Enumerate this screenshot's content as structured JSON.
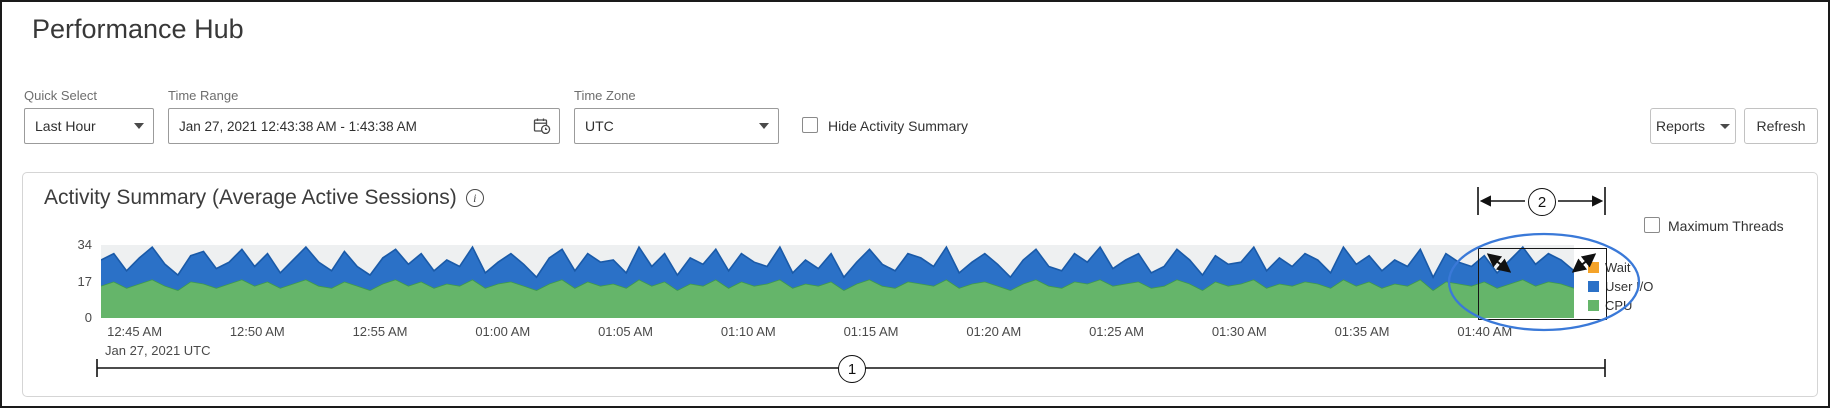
{
  "header": {
    "title": "Performance Hub"
  },
  "toolbar": {
    "quick_select": {
      "label": "Quick Select",
      "value": "Last Hour"
    },
    "time_range": {
      "label": "Time Range",
      "value": "Jan 27, 2021 12:43:38 AM - 1:43:38 AM"
    },
    "time_zone": {
      "label": "Time Zone",
      "value": "UTC"
    },
    "hide_activity_summary_label": "Hide Activity Summary",
    "hide_activity_summary_checked": false,
    "reports_label": "Reports",
    "refresh_label": "Refresh"
  },
  "panel": {
    "title": "Activity Summary (Average Active Sessions)",
    "maximum_threads_label": "Maximum Threads",
    "maximum_threads_checked": false
  },
  "annotations": {
    "step1": "1",
    "step2": "2",
    "highlight_color": "#3a79d8"
  },
  "chart_data": {
    "type": "area",
    "stacked": true,
    "title": "Activity Summary (Average Active Sessions)",
    "ylim": [
      0,
      34
    ],
    "y_ticks": [
      0,
      17,
      34
    ],
    "x_tick_labels": [
      "12:45 AM",
      "12:50 AM",
      "12:55 AM",
      "01:00 AM",
      "01:05 AM",
      "01:10 AM",
      "01:15 AM",
      "01:20 AM",
      "01:25 AM",
      "01:30 AM",
      "01:35 AM",
      "01:40 AM"
    ],
    "x_axis_note": "Jan 27, 2021 UTC",
    "legend_position": "right",
    "legend": [
      "Wait",
      "User I/O",
      "CPU"
    ],
    "series": [
      {
        "name": "CPU",
        "color": "#65b56a",
        "edge": "#3f9b4b",
        "values": [
          15,
          17,
          14,
          16,
          18,
          15,
          13,
          17,
          16,
          14,
          16,
          18,
          15,
          17,
          14,
          16,
          18,
          15,
          14,
          17,
          15,
          13,
          16,
          18,
          15,
          17,
          14,
          16,
          15,
          18,
          14,
          16,
          17,
          15,
          13,
          16,
          18,
          14,
          17,
          15,
          16,
          14,
          18,
          15,
          17,
          13,
          16,
          15,
          18,
          14,
          17,
          15,
          16,
          18,
          14,
          16,
          15,
          17,
          13,
          16,
          18,
          15,
          14,
          17,
          16,
          15,
          18,
          14,
          16,
          17,
          15,
          13,
          16,
          18,
          15,
          14,
          17,
          16,
          18,
          15,
          16,
          17,
          14,
          15,
          18,
          16,
          13,
          17,
          15,
          16,
          18,
          14,
          16,
          15,
          17,
          16,
          14,
          18,
          15,
          17,
          14,
          16,
          15,
          18,
          13,
          17,
          16,
          15,
          17,
          14,
          16,
          18,
          15,
          17,
          16,
          14
        ]
      },
      {
        "name": "User I/O",
        "color": "#2b71c7",
        "edge": "#1a5aa8",
        "values": [
          12,
          13,
          8,
          12,
          15,
          10,
          7,
          12,
          15,
          9,
          10,
          14,
          9,
          13,
          7,
          11,
          15,
          11,
          8,
          14,
          9,
          7,
          12,
          14,
          10,
          13,
          8,
          11,
          9,
          15,
          7,
          10,
          13,
          10,
          6,
          12,
          14,
          8,
          13,
          11,
          11,
          7,
          15,
          9,
          13,
          7,
          12,
          10,
          14,
          8,
          13,
          11,
          8,
          15,
          7,
          11,
          8,
          13,
          6,
          10,
          14,
          10,
          8,
          13,
          12,
          9,
          15,
          7,
          10,
          13,
          10,
          6,
          11,
          14,
          9,
          8,
          13,
          10,
          15,
          8,
          11,
          13,
          7,
          9,
          14,
          11,
          7,
          12,
          10,
          10,
          15,
          8,
          12,
          9,
          13,
          11,
          7,
          15,
          10,
          12,
          8,
          11,
          9,
          14,
          6,
          13,
          10,
          9,
          12,
          7,
          11,
          15,
          10,
          13,
          11,
          8
        ]
      },
      {
        "name": "Wait",
        "color": "#f5a329",
        "edge": "#d88a1f",
        "values": []
      }
    ]
  }
}
